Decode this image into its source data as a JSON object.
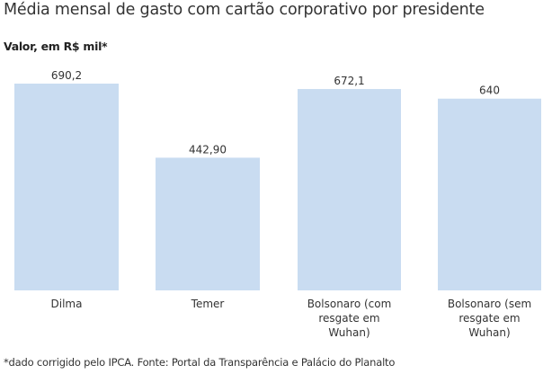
{
  "chart_data": {
    "type": "bar",
    "title": "Média mensal de gasto com cartão corporativo por presidente",
    "subtitle": "Valor, em R$ mil*",
    "categories": [
      [
        "Dilma"
      ],
      [
        "Temer"
      ],
      [
        "Bolsonaro (com",
        "resgate em",
        "Wuhan)"
      ],
      [
        "Bolsonaro (sem",
        "resgate em",
        "Wuhan)"
      ]
    ],
    "values": [
      690.2,
      442.9,
      672.1,
      640
    ],
    "value_labels": [
      "690,2",
      "442,90",
      "672,1",
      "640"
    ],
    "xlabel": "",
    "ylabel": "Valor, em R$ mil*",
    "ylim": [
      0,
      690.2
    ],
    "grid": false,
    "bar_color": "#c9dcf1",
    "footnote": "*dado corrigido pelo IPCA. Fonte: Portal da Transparência e Palácio do Planalto"
  }
}
